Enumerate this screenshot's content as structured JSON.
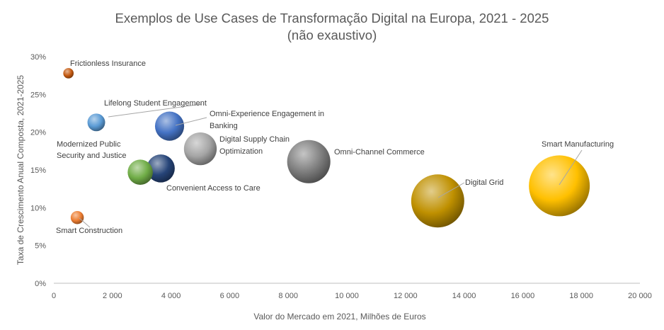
{
  "chart_data": {
    "type": "bubble",
    "title": "Exemplos de Use Cases de Transformação Digital na Europa, 2021 - 2025",
    "subtitle": "(não exaustivo)",
    "xlabel": "Valor do Mercado em 2021, Milhões de Euros",
    "ylabel": "Taxa de Crescimento Anual Composta, 2021-2025",
    "xlim": [
      0,
      20000
    ],
    "ylim": [
      0,
      30
    ],
    "x_ticks": [
      "0",
      "2 000",
      "4 000",
      "6 000",
      "8 000",
      "10 000",
      "12 000",
      "14 000",
      "16 000",
      "18 000",
      "20 000"
    ],
    "y_ticks": [
      "0%",
      "5%",
      "10%",
      "15%",
      "20%",
      "25%",
      "30%"
    ],
    "grid": false,
    "legend": "none",
    "points": [
      {
        "label": "Frictionless Insurance",
        "x": 500,
        "y": 27.8,
        "size": 500,
        "color": "#c55a11"
      },
      {
        "label": "Lifelong Student Engagement",
        "x": 1450,
        "y": 21.3,
        "size": 1450,
        "color": "#5b9bd5"
      },
      {
        "label": "Omni-Experience Engagement in Banking",
        "x": 3950,
        "y": 20.8,
        "size": 3950,
        "color": "#4472c4"
      },
      {
        "label": "Digital Supply Chain Optimization",
        "x": 5000,
        "y": 17.8,
        "size": 5000,
        "color": "#a5a5a5"
      },
      {
        "label": "Omni-Channel Commerce",
        "x": 8700,
        "y": 16.1,
        "size": 8700,
        "color": "#7f7f7f"
      },
      {
        "label": "Modernized Public Security and Justice",
        "x": 2950,
        "y": 14.7,
        "size": 2950,
        "color": "#70ad47"
      },
      {
        "label": "Convenient Access to Care",
        "x": 3650,
        "y": 15.2,
        "size": 3650,
        "color": "#264478"
      },
      {
        "label": "Digital Grid",
        "x": 13100,
        "y": 10.9,
        "size": 13100,
        "color": "#bf9000"
      },
      {
        "label": "Smart Manufacturing",
        "x": 17250,
        "y": 12.9,
        "size": 17250,
        "color": "#ffc000"
      },
      {
        "label": "Smart Construction",
        "x": 800,
        "y": 8.7,
        "size": 800,
        "color": "#ed7d31"
      }
    ]
  }
}
